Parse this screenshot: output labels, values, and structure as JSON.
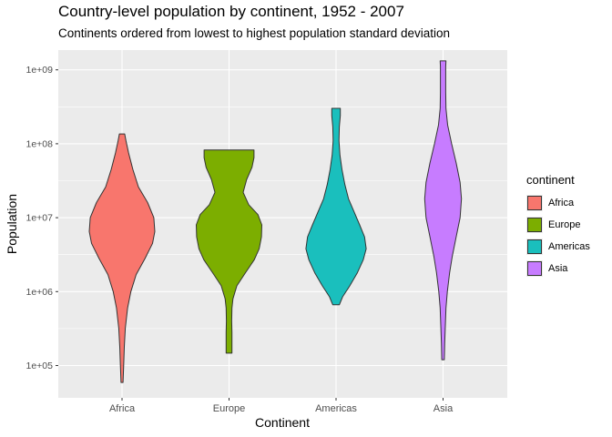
{
  "chart_data": {
    "type": "violin",
    "title": "Country-level population by continent, 1952 - 2007",
    "subtitle": "Continents ordered from lowest to highest population standard deviation",
    "xlabel": "Continent",
    "ylabel": "Population",
    "y_scale": "log10",
    "ylim": [
      40000,
      2000000000
    ],
    "y_ticks": [
      {
        "value": 100000,
        "label": "1e+05"
      },
      {
        "value": 1000000,
        "label": "1e+06"
      },
      {
        "value": 10000000,
        "label": "1e+07"
      },
      {
        "value": 100000000,
        "label": "1e+08"
      },
      {
        "value": 1000000000,
        "label": "1e+09"
      }
    ],
    "grid": true,
    "legend": {
      "title": "continent",
      "position": "right"
    },
    "series": [
      {
        "name": "Africa",
        "color": "#F8766D",
        "min": 59000,
        "max": 136000000,
        "density": [
          [
            59000,
            0.03
          ],
          [
            100000,
            0.05
          ],
          [
            180000,
            0.07
          ],
          [
            320000,
            0.1
          ],
          [
            600000,
            0.17
          ],
          [
            1000000,
            0.27
          ],
          [
            1700000,
            0.43
          ],
          [
            2800000,
            0.7
          ],
          [
            4500000,
            0.93
          ],
          [
            6500000,
            1.0
          ],
          [
            10000000,
            0.97
          ],
          [
            16000000,
            0.78
          ],
          [
            26000000,
            0.5
          ],
          [
            45000000,
            0.33
          ],
          [
            75000000,
            0.2
          ],
          [
            110000000,
            0.12
          ],
          [
            136000000,
            0.08
          ]
        ]
      },
      {
        "name": "Europe",
        "color": "#7CAE00",
        "min": 147000,
        "max": 82400000,
        "density": [
          [
            147000,
            0.09
          ],
          [
            200000,
            0.09
          ],
          [
            280000,
            0.09
          ],
          [
            400000,
            0.08
          ],
          [
            600000,
            0.09
          ],
          [
            800000,
            0.12
          ],
          [
            1200000,
            0.24
          ],
          [
            1800000,
            0.5
          ],
          [
            2700000,
            0.77
          ],
          [
            3800000,
            0.92
          ],
          [
            5500000,
            0.99
          ],
          [
            8000000,
            1.0
          ],
          [
            11000000,
            0.88
          ],
          [
            15000000,
            0.6
          ],
          [
            22000000,
            0.43
          ],
          [
            33000000,
            0.54
          ],
          [
            48000000,
            0.7
          ],
          [
            65000000,
            0.76
          ],
          [
            82400000,
            0.76
          ]
        ]
      },
      {
        "name": "Americas",
        "color": "#1ABFBD",
        "min": 662000,
        "max": 301000000,
        "density": [
          [
            662000,
            0.1
          ],
          [
            850000,
            0.2
          ],
          [
            1200000,
            0.42
          ],
          [
            1800000,
            0.65
          ],
          [
            2700000,
            0.83
          ],
          [
            3800000,
            0.92
          ],
          [
            5500000,
            0.87
          ],
          [
            8000000,
            0.72
          ],
          [
            12000000,
            0.55
          ],
          [
            18000000,
            0.38
          ],
          [
            28000000,
            0.27
          ],
          [
            45000000,
            0.18
          ],
          [
            70000000,
            0.12
          ],
          [
            110000000,
            0.09
          ],
          [
            170000000,
            0.1
          ],
          [
            240000000,
            0.13
          ],
          [
            301000000,
            0.13
          ]
        ]
      },
      {
        "name": "Asia",
        "color": "#C77CFF",
        "min": 120000,
        "max": 1320000000,
        "density": [
          [
            120000,
            0.04
          ],
          [
            200000,
            0.05
          ],
          [
            350000,
            0.07
          ],
          [
            600000,
            0.09
          ],
          [
            1000000,
            0.13
          ],
          [
            1800000,
            0.2
          ],
          [
            3000000,
            0.28
          ],
          [
            5500000,
            0.4
          ],
          [
            10000000,
            0.52
          ],
          [
            18000000,
            0.56
          ],
          [
            30000000,
            0.52
          ],
          [
            55000000,
            0.4
          ],
          [
            100000000,
            0.26
          ],
          [
            180000000,
            0.14
          ],
          [
            300000000,
            0.09
          ],
          [
            500000000,
            0.08
          ],
          [
            800000000,
            0.08
          ],
          [
            1100000000,
            0.08
          ],
          [
            1320000000,
            0.09
          ]
        ]
      }
    ]
  }
}
